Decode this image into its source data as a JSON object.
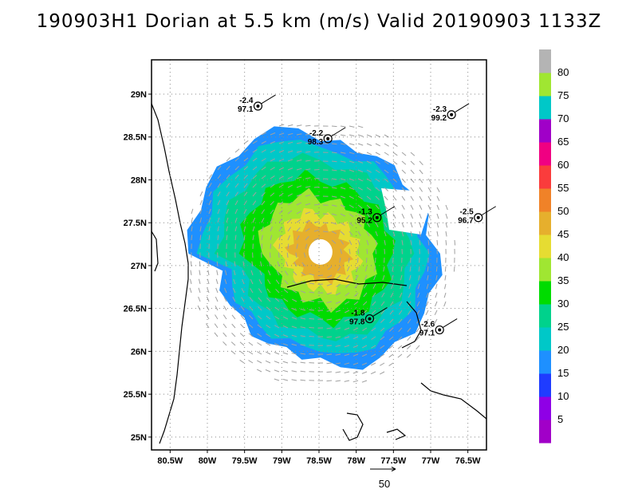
{
  "title": "190903H1 Dorian at 5.5 km (m/s) Valid 20190903 1133Z",
  "axes": {
    "lon": {
      "min": -80.75,
      "max": -76.25,
      "ticks": [
        -80.5,
        -80,
        -79.5,
        -79,
        -78.5,
        -78,
        -77.5,
        -77,
        -76.5
      ],
      "labels": [
        "80.5W",
        "80W",
        "79.5W",
        "79W",
        "78.5W",
        "78W",
        "77.5W",
        "77W",
        "76.5W"
      ]
    },
    "lat": {
      "min": 24.85,
      "max": 29.4,
      "ticks": [
        25,
        25.5,
        26,
        26.5,
        27,
        27.5,
        28,
        28.5,
        29
      ],
      "labels": [
        "25N",
        "25.5N",
        "26N",
        "26.5N",
        "27N",
        "27.5N",
        "28N",
        "28.5N",
        "29N"
      ]
    },
    "grid": true
  },
  "colorbar": {
    "labels": [
      "5",
      "10",
      "15",
      "20",
      "25",
      "30",
      "35",
      "40",
      "45",
      "50",
      "55",
      "60",
      "65",
      "70",
      "75",
      "80"
    ],
    "colors": [
      "#a100c8",
      "#8f00e6",
      "#1f3cff",
      "#1e90ff",
      "#00c8c8",
      "#00d28c",
      "#00dc00",
      "#a0e632",
      "#e6dc32",
      "#e6af2d",
      "#f08228",
      "#fa3c3c",
      "#f00082",
      "#a000c8",
      "#00c8c8",
      "#a0e632",
      "#b4b4b4"
    ]
  },
  "reference_vector": {
    "label": "50"
  },
  "sondes": [
    {
      "lon": -79.32,
      "lat": 28.86,
      "v1": "-2.4",
      "v2": "97.1"
    },
    {
      "lon": -78.38,
      "lat": 28.48,
      "v1": "-2.2",
      "v2": "98.3"
    },
    {
      "lon": -76.72,
      "lat": 28.76,
      "v1": "-2.3",
      "v2": "99.2"
    },
    {
      "lon": -77.72,
      "lat": 27.56,
      "v1": "-1.3",
      "v2": "95.2"
    },
    {
      "lon": -76.36,
      "lat": 27.56,
      "v1": "-2.5",
      "v2": "96.7"
    },
    {
      "lon": -77.82,
      "lat": 26.38,
      "v1": "-1.8",
      "v2": "97.8"
    },
    {
      "lon": -76.88,
      "lat": 26.25,
      "v1": "-2.6",
      "v2": "97.1"
    }
  ],
  "storm_center": {
    "lon": -78.48,
    "lat": 27.14
  }
}
